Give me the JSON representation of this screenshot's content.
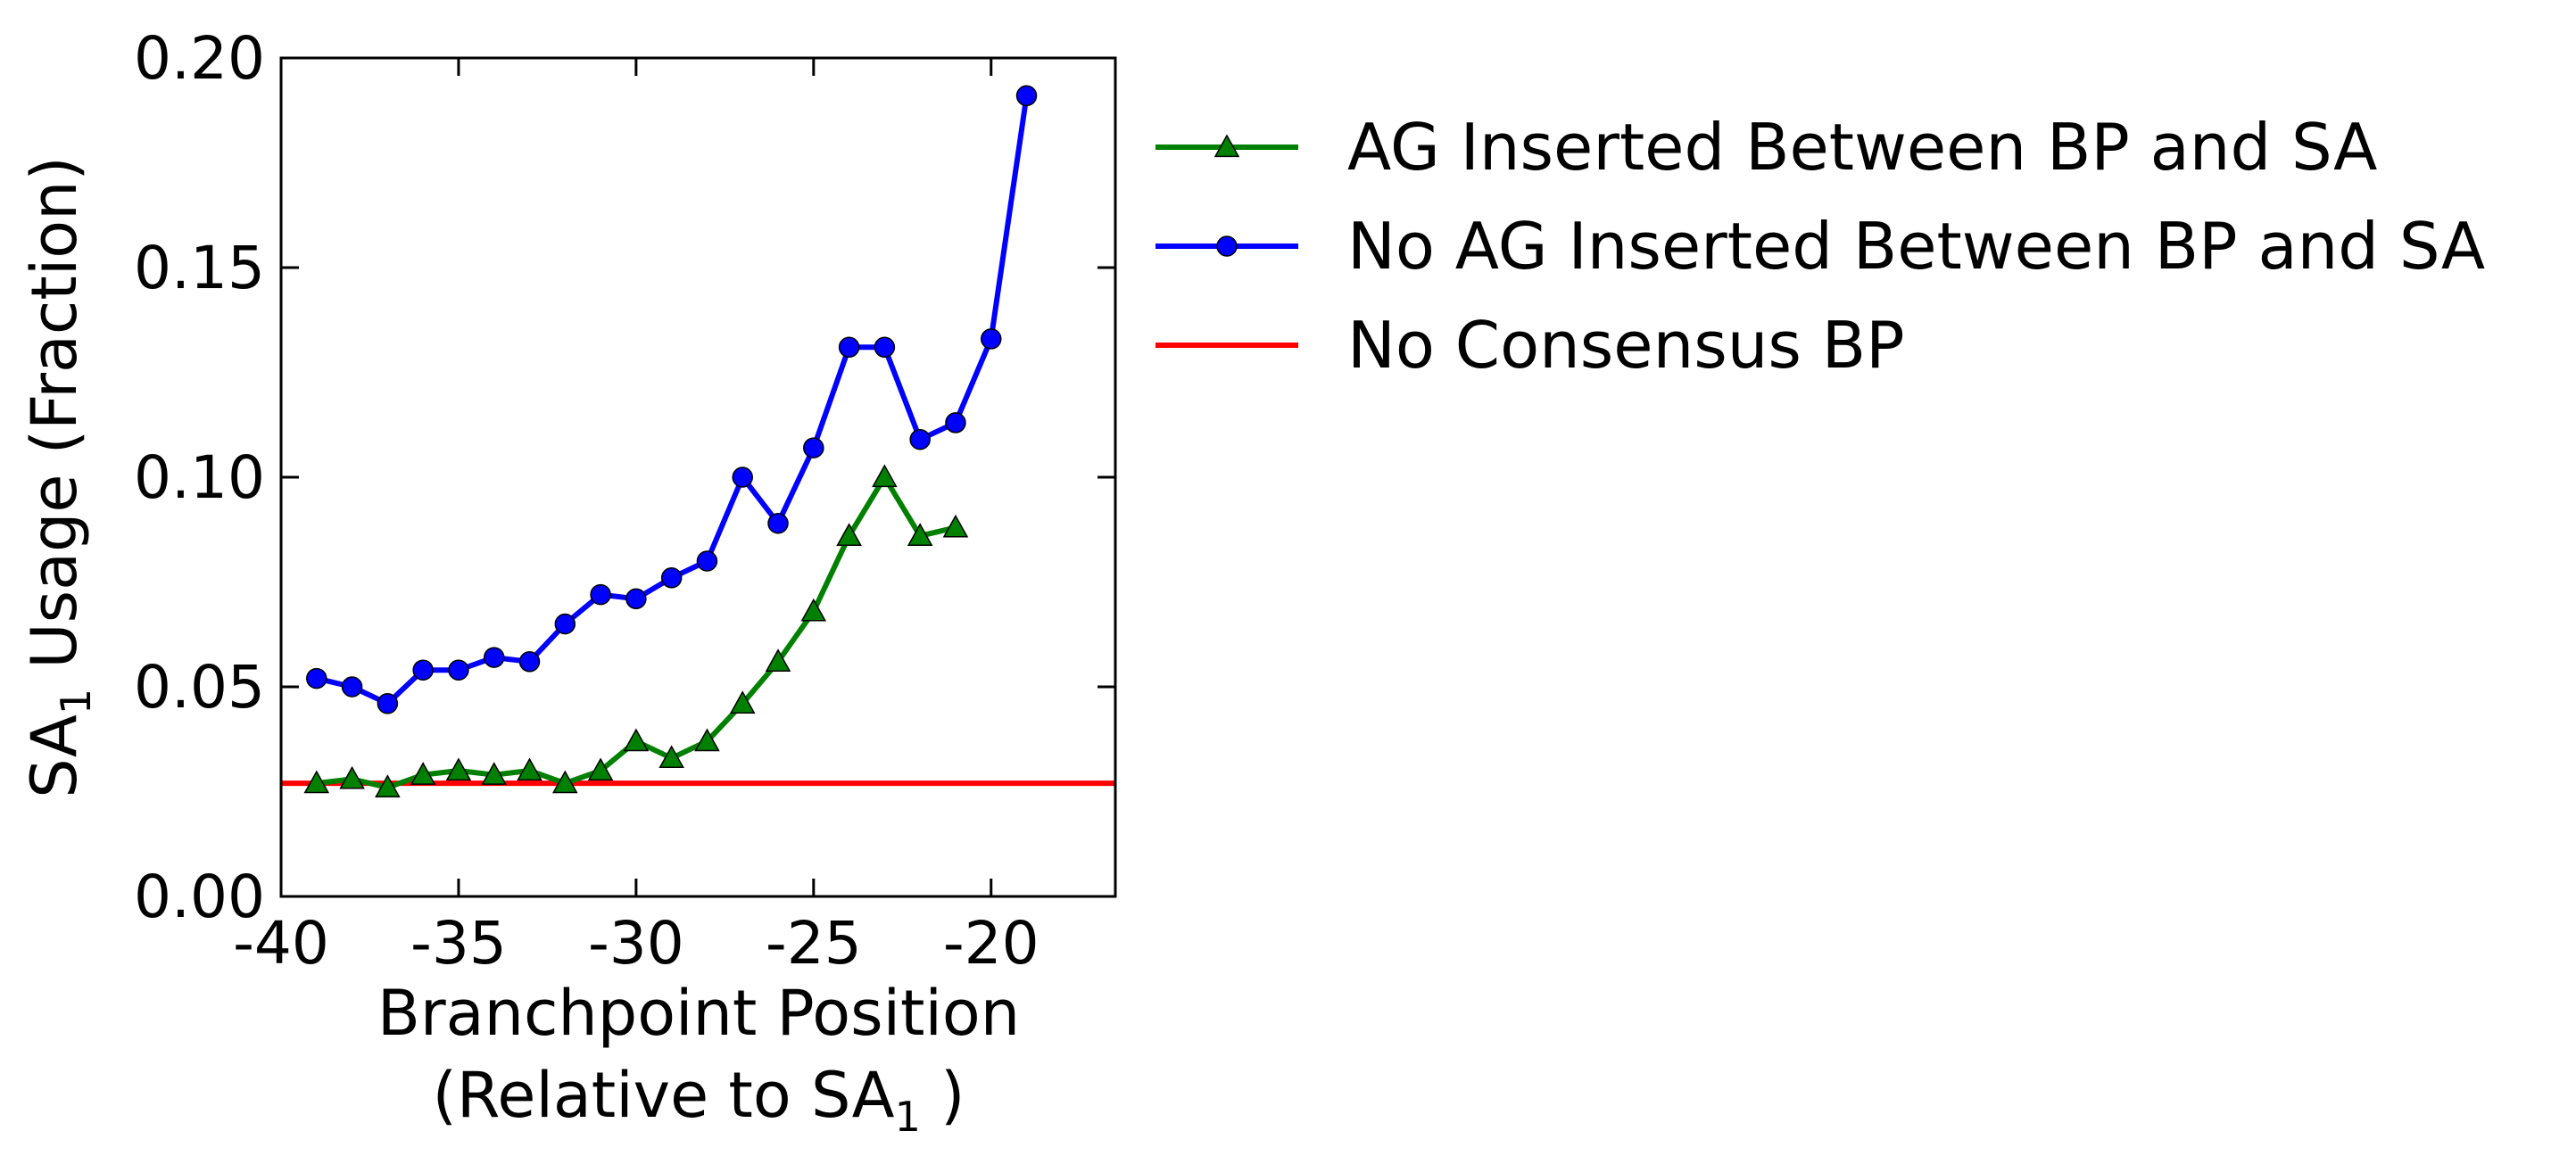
{
  "chart_data": {
    "type": "line",
    "xlabel": {
      "line1": "Branchpoint Position",
      "line2_prefix": "(Relative to SA",
      "line2_sub": "1",
      "line2_suffix": " )"
    },
    "ylabel": {
      "prefix": "SA",
      "sub": "1",
      "suffix": " Usage (Fraction)"
    },
    "xlim": [
      -40,
      -16.5
    ],
    "ylim": [
      0,
      0.2
    ],
    "xticks": [
      -40,
      -35,
      -30,
      -25,
      -20
    ],
    "xtick_labels": [
      "-40",
      "-35",
      "-30",
      "-25",
      "-20"
    ],
    "yticks": [
      0,
      0.05,
      0.1,
      0.15,
      0.2
    ],
    "ytick_labels": [
      "0.00",
      "0.05",
      "0.10",
      "0.15",
      "0.20"
    ],
    "grid": false,
    "legend_position": "outside-right-top",
    "series": [
      {
        "name": "AG Inserted Between BP and SA",
        "color": "#008000",
        "marker": "triangle",
        "x": [
          -39,
          -38,
          -37,
          -36,
          -35,
          -34,
          -33,
          -32,
          -31,
          -30,
          -29,
          -28,
          -27,
          -26,
          -25,
          -24,
          -23,
          -22,
          -21
        ],
        "y": [
          0.027,
          0.028,
          0.026,
          0.029,
          0.03,
          0.029,
          0.03,
          0.027,
          0.03,
          0.037,
          0.033,
          0.037,
          0.046,
          0.056,
          0.068,
          0.086,
          0.1,
          0.086,
          0.088
        ]
      },
      {
        "name": "No AG Inserted Between BP and SA",
        "color": "#0000ff",
        "marker": "circle",
        "x": [
          -39,
          -38,
          -37,
          -36,
          -35,
          -34,
          -33,
          -32,
          -31,
          -30,
          -29,
          -28,
          -27,
          -26,
          -25,
          -24,
          -23,
          -22,
          -21,
          -20,
          -19
        ],
        "y": [
          0.052,
          0.05,
          0.046,
          0.054,
          0.054,
          0.057,
          0.056,
          0.065,
          0.072,
          0.071,
          0.076,
          0.08,
          0.1,
          0.089,
          0.107,
          0.131,
          0.131,
          0.109,
          0.113,
          0.133,
          0.191
        ]
      },
      {
        "name": "No Consensus BP",
        "color": "#ff0000",
        "marker": "none",
        "hline": 0.027
      }
    ]
  }
}
